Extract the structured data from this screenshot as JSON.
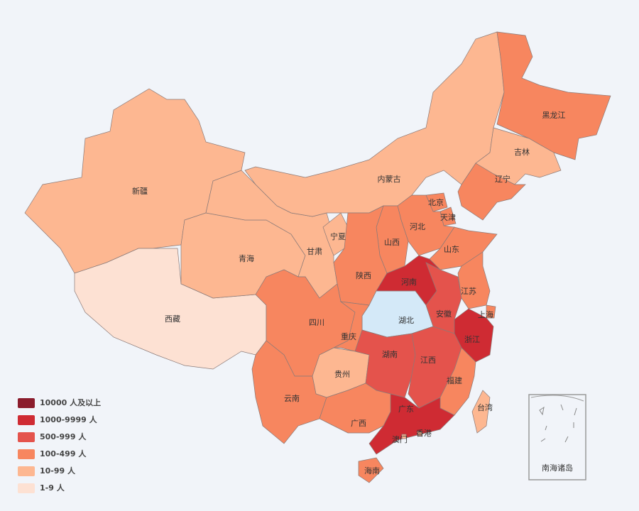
{
  "map": {
    "legend": [
      {
        "label": "10000 人及以上",
        "color": "#8b1c2c"
      },
      {
        "label": "1000-9999 人",
        "color": "#cf2b33"
      },
      {
        "label": "500-999 人",
        "color": "#e4534c"
      },
      {
        "label": "100-499 人",
        "color": "#f7865f"
      },
      {
        "label": "10-99 人",
        "color": "#fdb791"
      },
      {
        "label": "1-9 人",
        "color": "#fde1d3"
      }
    ],
    "regions": [
      {
        "name": "新疆",
        "level": 4
      },
      {
        "name": "西藏",
        "level": 5
      },
      {
        "name": "青海",
        "level": 4
      },
      {
        "name": "甘肃",
        "level": 4
      },
      {
        "name": "宁夏",
        "level": 4
      },
      {
        "name": "内蒙古",
        "level": 4
      },
      {
        "name": "黑龙江",
        "level": 3
      },
      {
        "name": "吉林",
        "level": 4
      },
      {
        "name": "辽宁",
        "level": 3
      },
      {
        "name": "北京",
        "level": 3
      },
      {
        "name": "天津",
        "level": 3
      },
      {
        "name": "河北",
        "level": 3
      },
      {
        "name": "山西",
        "level": 3
      },
      {
        "name": "山东",
        "level": 3
      },
      {
        "name": "陕西",
        "level": 3
      },
      {
        "name": "河南",
        "level": 1
      },
      {
        "name": "湖北",
        "level": 0,
        "color": "#d4e9f8"
      },
      {
        "name": "安徽",
        "level": 2
      },
      {
        "name": "江苏",
        "level": 3
      },
      {
        "name": "上海",
        "level": 3
      },
      {
        "name": "浙江",
        "level": 1
      },
      {
        "name": "四川",
        "level": 3
      },
      {
        "name": "重庆",
        "level": 3
      },
      {
        "name": "贵州",
        "level": 4
      },
      {
        "name": "云南",
        "level": 3
      },
      {
        "name": "湖南",
        "level": 2
      },
      {
        "name": "江西",
        "level": 2
      },
      {
        "name": "福建",
        "level": 3
      },
      {
        "name": "广东",
        "level": 1
      },
      {
        "name": "广西",
        "level": 3
      },
      {
        "name": "海南",
        "level": 3
      },
      {
        "name": "台湾",
        "level": 4
      },
      {
        "name": "香港",
        "level": 4
      },
      {
        "name": "澳门",
        "level": 4
      }
    ],
    "inset_label": "南海诸岛"
  }
}
